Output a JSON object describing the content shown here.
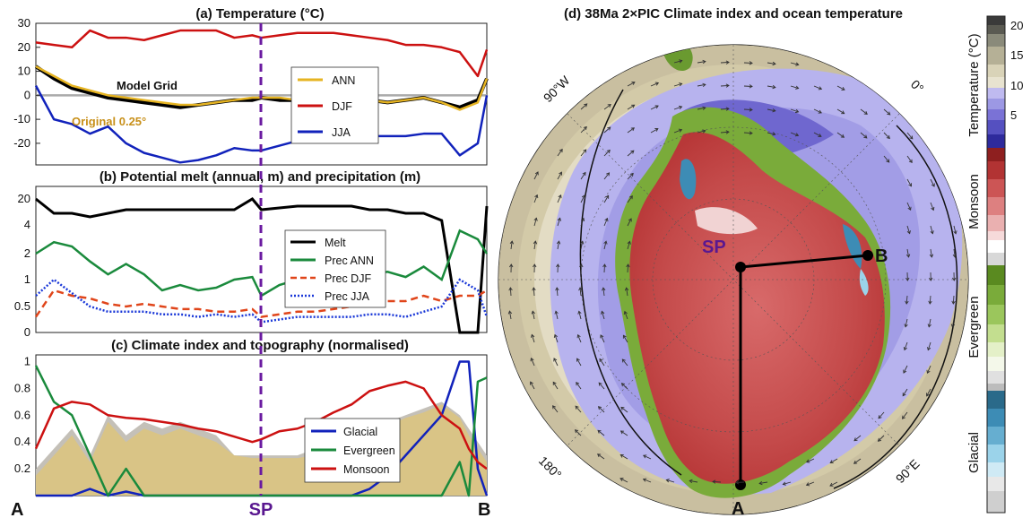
{
  "chart_data": [
    {
      "panel": "a",
      "type": "line",
      "title": "(a) Temperature (°C)",
      "ylim": [
        -29,
        30
      ],
      "yticks": [
        -20,
        -10,
        0,
        10,
        20,
        30
      ],
      "x": [
        0,
        4,
        8,
        12,
        16,
        20,
        24,
        28,
        32,
        36,
        40,
        44,
        48,
        50,
        54,
        58,
        62,
        66,
        70,
        74,
        78,
        82,
        86,
        90,
        94,
        98,
        100
      ],
      "series": [
        {
          "name": "ANN",
          "color": "#e6b422",
          "values": [
            12,
            8,
            4,
            2,
            0,
            -1,
            -2,
            -3,
            -4,
            -4,
            -3,
            -2,
            -1,
            -1,
            -1,
            -2,
            -2,
            -1,
            -1,
            -2,
            -3,
            -2,
            -1,
            -3,
            -6,
            -3,
            7
          ]
        },
        {
          "name": "DJF",
          "color": "#cc1111",
          "values": [
            22,
            21,
            20,
            27,
            24,
            24,
            23,
            25,
            27,
            27,
            27,
            24,
            25,
            24,
            25,
            26,
            26,
            26,
            25,
            24,
            23,
            21,
            21,
            20,
            18,
            8,
            19
          ]
        },
        {
          "name": "JJA",
          "color": "#1122bb",
          "values": [
            4,
            -10,
            -12,
            -16,
            -13,
            -20,
            -24,
            -26,
            -28,
            -27,
            -25,
            -22,
            -23,
            -23,
            -21,
            -19,
            -19,
            -18,
            -18,
            -17,
            -17,
            -17,
            -16,
            -16,
            -25,
            -20,
            0
          ]
        },
        {
          "name": "Model Grid",
          "color": "#000000",
          "values": [
            12,
            7,
            3,
            1,
            -1,
            -2,
            -3,
            -4,
            -5,
            -4,
            -3,
            -2,
            -2,
            -1,
            -2,
            -2,
            -2,
            -2,
            -2,
            -2,
            -3,
            -2,
            -1,
            -3,
            -5,
            -2,
            7
          ]
        }
      ],
      "annotations": [
        "Model Grid",
        "Original 0.25°"
      ]
    },
    {
      "panel": "b",
      "type": "line",
      "title": "(b) Potential melt (annual, m) and precipitation (m)",
      "ytick_labels": [
        "0",
        "0.5",
        "1",
        "2",
        "4",
        "20"
      ],
      "x": [
        0,
        4,
        8,
        12,
        16,
        20,
        24,
        28,
        32,
        36,
        40,
        44,
        48,
        50,
        54,
        58,
        62,
        66,
        70,
        74,
        78,
        82,
        86,
        90,
        94,
        98,
        100
      ],
      "series": [
        {
          "name": "Melt",
          "color": "#000000",
          "style": "solid",
          "values": [
            5.6,
            5.2,
            5.2,
            5.1,
            5.2,
            5.3,
            5.3,
            5.3,
            5.3,
            5.3,
            5.3,
            5.3,
            5.6,
            5.3,
            5.35,
            5.4,
            5.4,
            5.4,
            5.4,
            5.3,
            5.3,
            5.2,
            5.2,
            5.0,
            0,
            0,
            5.4
          ]
        },
        {
          "name": "Prec ANN",
          "color": "#1a8a3c",
          "style": "solid",
          "values": [
            2.0,
            2.8,
            2.5,
            1.7,
            1.2,
            1.6,
            1.2,
            0.8,
            0.9,
            0.8,
            0.85,
            1.0,
            1.1,
            0.7,
            0.9,
            1.0,
            0.95,
            1.1,
            0.85,
            1.2,
            1.3,
            1.1,
            1.5,
            1.0,
            3.6,
            3.0,
            2.0
          ]
        },
        {
          "name": "Prec DJF",
          "color": "#e0451a",
          "style": "dashed",
          "values": [
            0.3,
            0.8,
            0.7,
            0.65,
            0.55,
            0.5,
            0.55,
            0.5,
            0.45,
            0.45,
            0.4,
            0.4,
            0.45,
            0.3,
            0.35,
            0.4,
            0.4,
            0.45,
            0.5,
            0.55,
            0.6,
            0.6,
            0.7,
            0.6,
            0.7,
            0.7,
            0.8
          ]
        },
        {
          "name": "Prec JJA",
          "color": "#1a38d8",
          "style": "dotted",
          "values": [
            0.7,
            1.0,
            0.75,
            0.5,
            0.4,
            0.4,
            0.4,
            0.35,
            0.35,
            0.3,
            0.35,
            0.3,
            0.35,
            0.2,
            0.25,
            0.3,
            0.3,
            0.3,
            0.3,
            0.35,
            0.35,
            0.3,
            0.4,
            0.5,
            1.0,
            0.8,
            0.3
          ]
        }
      ]
    },
    {
      "panel": "c",
      "type": "line",
      "title": "(c) Climate index and topography (normalised)",
      "ylim": [
        0,
        1.05
      ],
      "yticks": [
        0.2,
        0.4,
        0.6,
        0.8,
        1
      ],
      "x": [
        0,
        4,
        8,
        12,
        16,
        20,
        24,
        28,
        32,
        36,
        40,
        44,
        48,
        50,
        54,
        58,
        62,
        66,
        70,
        74,
        78,
        82,
        86,
        90,
        94,
        96,
        98,
        100
      ],
      "series": [
        {
          "name": "Glacial",
          "color": "#1122bb",
          "values": [
            0,
            0,
            0,
            0.05,
            0,
            0.03,
            0,
            0,
            0,
            0,
            0,
            0,
            0,
            0,
            0,
            0,
            0,
            0,
            0,
            0.05,
            0.15,
            0.3,
            0.45,
            0.6,
            1.0,
            1.0,
            0.2,
            0
          ]
        },
        {
          "name": "Evergreen",
          "color": "#1a8a3c",
          "values": [
            0.97,
            0.7,
            0.6,
            0.3,
            0,
            0.2,
            0,
            0,
            0,
            0,
            0,
            0,
            0,
            0,
            0,
            0,
            0,
            0,
            0,
            0,
            0,
            0,
            0,
            0,
            0.25,
            0,
            0.85,
            0.88
          ]
        },
        {
          "name": "Monsoon",
          "color": "#cc1111",
          "values": [
            0.35,
            0.65,
            0.7,
            0.68,
            0.6,
            0.58,
            0.57,
            0.55,
            0.53,
            0.5,
            0.48,
            0.44,
            0.4,
            0.42,
            0.48,
            0.5,
            0.55,
            0.62,
            0.68,
            0.78,
            0.82,
            0.85,
            0.8,
            0.6,
            0.5,
            0.35,
            0.25,
            0.2
          ]
        }
      ],
      "topography_grey": [
        0.2,
        0.35,
        0.5,
        0.3,
        0.6,
        0.45,
        0.55,
        0.5,
        0.55,
        0.5,
        0.45,
        0.3,
        0.3,
        0.3,
        0.3,
        0.3,
        0.35,
        0.35,
        0.45,
        0.5,
        0.55,
        0.6,
        0.65,
        0.7,
        0.6,
        0.5,
        0.4,
        0.3
      ],
      "topography_tan": [
        0.15,
        0.3,
        0.45,
        0.25,
        0.55,
        0.4,
        0.5,
        0.45,
        0.5,
        0.45,
        0.4,
        0.3,
        0.28,
        0.28,
        0.28,
        0.28,
        0.3,
        0.32,
        0.42,
        0.48,
        0.52,
        0.58,
        0.62,
        0.68,
        0.58,
        0.45,
        0.35,
        0.25
      ],
      "xtick_labels": [
        "A",
        "SP",
        "B"
      ]
    }
  ],
  "map": {
    "title": "(d) 38Ma 2×PIC Climate index and ocean temperature",
    "labels": {
      "lon_w": "90°W",
      "lon_0": "0°",
      "lon_180": "180°",
      "lon_e": "90°E",
      "sp": "SP",
      "a": "A",
      "b": "B"
    }
  },
  "colorbar": {
    "temp_label": "Temperature (°C)",
    "temp_ticks": [
      "20",
      "15",
      "10",
      "5"
    ],
    "index_labels": [
      "Monsoon",
      "Evergreen",
      "Glacial"
    ]
  }
}
